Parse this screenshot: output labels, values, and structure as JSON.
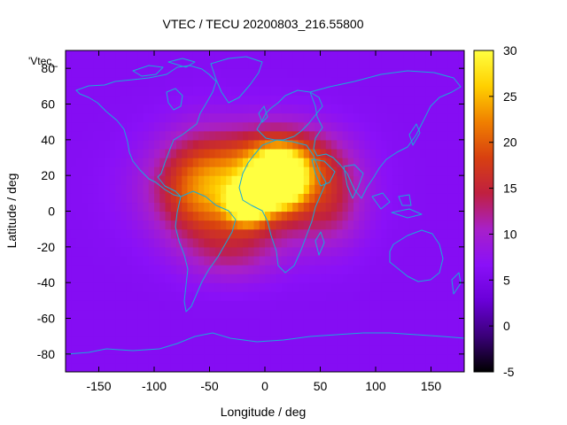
{
  "chart_data": {
    "type": "heatmap",
    "title": "VTEC / TECU 20200803_216.55800",
    "xlabel": "Longitude / deg",
    "ylabel": "Latitude / deg",
    "series_label": "'Vtec_",
    "xlim": [
      -180,
      180
    ],
    "ylim": [
      -90,
      90
    ],
    "x_ticks": [
      -150,
      -100,
      -50,
      0,
      50,
      100,
      150
    ],
    "y_ticks": [
      -80,
      -60,
      -40,
      -20,
      0,
      20,
      40,
      60,
      80
    ],
    "colorbar": {
      "range": [
        -5,
        30
      ],
      "ticks": [
        -5,
        0,
        5,
        10,
        15,
        20,
        25,
        30
      ],
      "palette": [
        "#000000",
        "#3a0078",
        "#6a00d8",
        "#8a10f8",
        "#a820c8",
        "#c02040",
        "#d84010",
        "#f08000",
        "#ffd000",
        "#ffff40"
      ]
    },
    "background_vtec": 6,
    "features": [
      {
        "lon": 12,
        "lat": 18,
        "peak": 29,
        "spread_lon": 22,
        "spread_lat": 14
      },
      {
        "lon": -15,
        "lat": 5,
        "peak": 26,
        "spread_lon": 16,
        "spread_lat": 10
      },
      {
        "lon": -20,
        "lat": 12,
        "peak": 16,
        "spread_lon": 70,
        "spread_lat": 28
      },
      {
        "lon": 20,
        "lat": 30,
        "peak": 9,
        "spread_lon": 45,
        "spread_lat": 18
      },
      {
        "lon": -60,
        "lat": 15,
        "peak": 6,
        "spread_lon": 35,
        "spread_lat": 30
      },
      {
        "lon": 60,
        "lat": 5,
        "peak": 5,
        "spread_lon": 30,
        "spread_lat": 25
      },
      {
        "lon": -30,
        "lat": -25,
        "peak": 4,
        "spread_lon": 40,
        "spread_lat": 15
      }
    ]
  }
}
